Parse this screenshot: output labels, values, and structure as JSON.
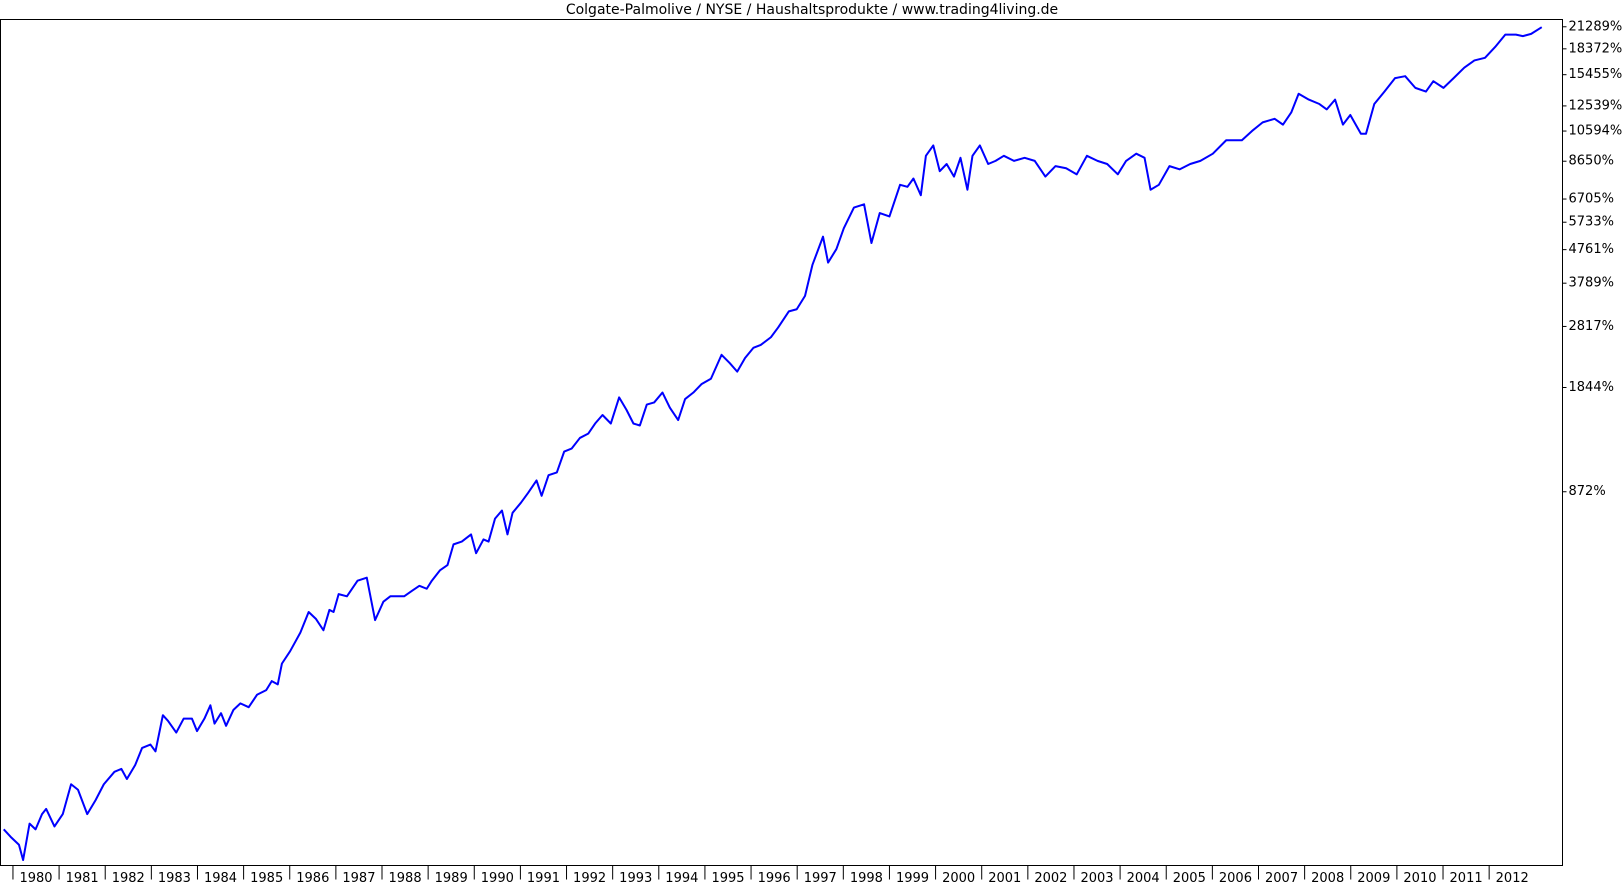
{
  "chart_data": {
    "type": "line",
    "title": "Colgate-Palmolive / NYSE / Haushaltsprodukte / www.trading4living.de",
    "color": "#0000ff",
    "log_y": true,
    "grid": false,
    "xlim": [
      1979.73,
      2013.59
    ],
    "ylim": [
      -19,
      22350
    ],
    "xticks": [
      1980,
      1981,
      1982,
      1983,
      1984,
      1985,
      1986,
      1987,
      1988,
      1989,
      1990,
      1991,
      1992,
      1993,
      1994,
      1995,
      1996,
      1997,
      1998,
      1999,
      2000,
      2001,
      2002,
      2003,
      2004,
      2005,
      2006,
      2007,
      2008,
      2009,
      2010,
      2011,
      2012
    ],
    "yticks": [
      {
        "value": 872,
        "label": "872%"
      },
      {
        "value": 1844,
        "label": "1844%"
      },
      {
        "value": 2817,
        "label": "2817%"
      },
      {
        "value": 3789,
        "label": "3789%"
      },
      {
        "value": 4761,
        "label": "4761%"
      },
      {
        "value": 5733,
        "label": "5733%"
      },
      {
        "value": 6705,
        "label": "6705%"
      },
      {
        "value": 8650,
        "label": "8650%"
      },
      {
        "value": 10594,
        "label": "10594%"
      },
      {
        "value": 12539,
        "label": "12539%"
      },
      {
        "value": 15455,
        "label": "15455%"
      },
      {
        "value": 18372,
        "label": "18372%"
      },
      {
        "value": 21289,
        "label": "21289%"
      }
    ],
    "x": [
      1979.8,
      1979.95,
      1980.13,
      1980.22,
      1980.36,
      1980.49,
      1980.63,
      1980.72,
      1980.9,
      1981.08,
      1981.26,
      1981.41,
      1981.61,
      1981.79,
      1981.97,
      1982.2,
      1982.35,
      1982.47,
      1982.65,
      1982.8,
      1982.98,
      1983.09,
      1983.25,
      1983.36,
      1983.54,
      1983.7,
      1983.88,
      1983.99,
      1984.15,
      1984.28,
      1984.37,
      1984.51,
      1984.62,
      1984.78,
      1984.93,
      1985.11,
      1985.29,
      1985.49,
      1985.61,
      1985.74,
      1985.83,
      1986.01,
      1986.23,
      1986.41,
      1986.57,
      1986.73,
      1986.86,
      1986.95,
      1987.06,
      1987.24,
      1987.47,
      1987.67,
      1987.85,
      1988.03,
      1988.18,
      1988.48,
      1988.65,
      1988.81,
      1988.97,
      1989.08,
      1989.26,
      1989.42,
      1989.55,
      1989.73,
      1989.93,
      1990.04,
      1990.2,
      1990.31,
      1990.45,
      1990.6,
      1990.72,
      1990.83,
      1991.01,
      1991.17,
      1991.35,
      1991.46,
      1991.61,
      1991.79,
      1991.95,
      1992.11,
      1992.29,
      1992.47,
      1992.62,
      1992.78,
      1992.96,
      1993.14,
      1993.3,
      1993.45,
      1993.59,
      1993.74,
      1993.9,
      1994.08,
      1994.24,
      1994.42,
      1994.57,
      1994.75,
      1994.93,
      1995.13,
      1995.36,
      1995.54,
      1995.7,
      1995.87,
      1996.05,
      1996.21,
      1996.43,
      1996.59,
      1996.82,
      1996.99,
      1997.17,
      1997.33,
      1997.56,
      1997.67,
      1997.85,
      1998.01,
      1998.23,
      1998.45,
      1998.61,
      1998.79,
      1999.0,
      1999.23,
      1999.39,
      1999.52,
      1999.68,
      1999.79,
      1999.95,
      2000.09,
      2000.24,
      2000.4,
      2000.54,
      2000.69,
      2000.8,
      2000.96,
      2001.14,
      2001.3,
      2001.48,
      2001.7,
      2001.93,
      2002.15,
      2002.38,
      2002.6,
      2002.83,
      2003.06,
      2003.28,
      2003.51,
      2003.72,
      2003.95,
      2004.13,
      2004.35,
      2004.53,
      2004.66,
      2004.84,
      2005.07,
      2005.29,
      2005.52,
      2005.74,
      2006.01,
      2006.3,
      2006.64,
      2006.86,
      2007.09,
      2007.35,
      2007.53,
      2007.71,
      2007.87,
      2008.09,
      2008.32,
      2008.48,
      2008.66,
      2008.83,
      2008.99,
      2009.22,
      2009.33,
      2009.51,
      2009.73,
      2009.96,
      2010.18,
      2010.4,
      2010.63,
      2010.79,
      2011.01,
      2011.23,
      2011.46,
      2011.68,
      2011.91,
      2012.13,
      2012.35,
      2012.58,
      2012.73,
      2012.91,
      2013.14
    ],
    "values": [
      3,
      -2,
      -7,
      -16,
      7,
      3,
      14,
      18,
      5,
      14,
      39,
      34,
      14,
      25,
      39,
      51,
      54,
      44,
      58,
      77,
      81,
      73,
      120,
      112,
      96,
      115,
      115,
      98,
      115,
      135,
      108,
      123,
      105,
      128,
      138,
      132,
      152,
      160,
      176,
      170,
      210,
      237,
      281,
      337,
      317,
      287,
      343,
      337,
      392,
      385,
      438,
      449,
      314,
      368,
      385,
      385,
      403,
      420,
      410,
      438,
      477,
      497,
      585,
      598,
      632,
      546,
      608,
      598,
      713,
      758,
      632,
      745,
      803,
      866,
      948,
      846,
      985,
      1005,
      1170,
      1195,
      1290,
      1330,
      1430,
      1519,
      1430,
      1720,
      1575,
      1430,
      1410,
      1635,
      1660,
      1780,
      1600,
      1465,
      1700,
      1780,
      1890,
      1960,
      2315,
      2185,
      2060,
      2265,
      2430,
      2480,
      2615,
      2800,
      3125,
      3170,
      3475,
      4290,
      5200,
      4360,
      4780,
      5500,
      6330,
      6470,
      4980,
      6100,
      5960,
      7380,
      7280,
      7700,
      6880,
      8970,
      9620,
      8090,
      8490,
      7800,
      8850,
      7140,
      8970,
      9620,
      8490,
      8670,
      8970,
      8670,
      8850,
      8670,
      7800,
      8370,
      8250,
      7920,
      8970,
      8670,
      8490,
      7920,
      8670,
      9100,
      8850,
      7140,
      7380,
      8370,
      8190,
      8490,
      8670,
      9100,
      9960,
      9960,
      10600,
      11230,
      11500,
      11060,
      12000,
      13600,
      13080,
      12700,
      12250,
      13080,
      11060,
      11800,
      10400,
      10400,
      12700,
      13800,
      15100,
      15300,
      14150,
      13800,
      14800,
      14150,
      15100,
      16200,
      17000,
      17300,
      18600,
      20200,
      20200,
      20000,
      20300,
      21230
    ]
  }
}
